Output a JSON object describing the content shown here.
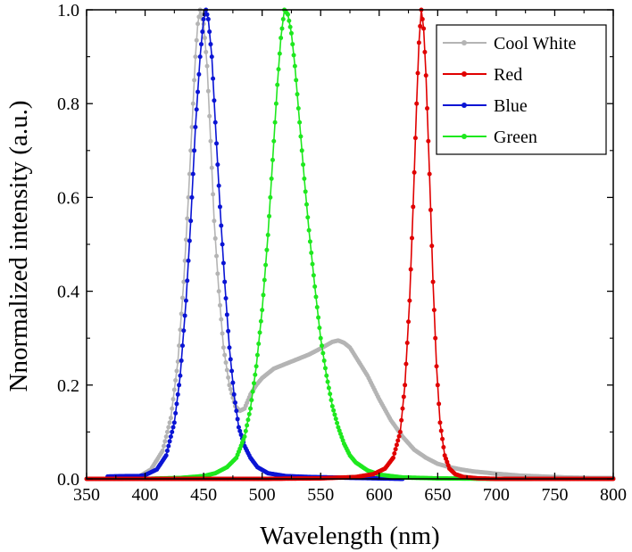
{
  "chart_data": {
    "type": "line",
    "xlabel": "Wavelength (nm)",
    "ylabel": "Nnormalized intensity (a.u.)",
    "xlim": [
      350,
      800
    ],
    "ylim": [
      0,
      1.0
    ],
    "x_ticks": [
      350,
      400,
      450,
      500,
      550,
      600,
      650,
      700,
      750,
      800
    ],
    "x_tick_labels": [
      "350",
      "400",
      "450",
      "500",
      "550",
      "600",
      "650",
      "700",
      "750",
      "800"
    ],
    "y_ticks": [
      0,
      0.2,
      0.4,
      0.6,
      0.8,
      1.0
    ],
    "y_tick_labels": [
      "0.0",
      "0.2",
      "0.4",
      "0.6",
      "0.8",
      "1.0"
    ],
    "legend_position": "top-right",
    "series": [
      {
        "name": "Cool White",
        "color": "#b4b4b4",
        "points": [
          [
            350,
            0
          ],
          [
            380,
            0.0
          ],
          [
            395,
            0.005
          ],
          [
            405,
            0.02
          ],
          [
            415,
            0.06
          ],
          [
            422,
            0.13
          ],
          [
            428,
            0.25
          ],
          [
            433,
            0.42
          ],
          [
            437,
            0.6
          ],
          [
            440,
            0.75
          ],
          [
            443,
            0.9
          ],
          [
            445,
            0.97
          ],
          [
            447,
            1.0
          ],
          [
            450,
            0.97
          ],
          [
            453,
            0.88
          ],
          [
            456,
            0.72
          ],
          [
            459,
            0.55
          ],
          [
            463,
            0.4
          ],
          [
            467,
            0.28
          ],
          [
            472,
            0.2
          ],
          [
            477,
            0.155
          ],
          [
            481,
            0.145
          ],
          [
            485,
            0.15
          ],
          [
            490,
            0.18
          ],
          [
            495,
            0.2
          ],
          [
            500,
            0.215
          ],
          [
            505,
            0.225
          ],
          [
            510,
            0.235
          ],
          [
            520,
            0.245
          ],
          [
            530,
            0.255
          ],
          [
            540,
            0.265
          ],
          [
            550,
            0.278
          ],
          [
            555,
            0.285
          ],
          [
            560,
            0.292
          ],
          [
            565,
            0.295
          ],
          [
            570,
            0.29
          ],
          [
            575,
            0.28
          ],
          [
            580,
            0.26
          ],
          [
            590,
            0.22
          ],
          [
            600,
            0.17
          ],
          [
            610,
            0.125
          ],
          [
            620,
            0.09
          ],
          [
            630,
            0.062
          ],
          [
            640,
            0.045
          ],
          [
            650,
            0.032
          ],
          [
            660,
            0.025
          ],
          [
            670,
            0.02
          ],
          [
            680,
            0.016
          ],
          [
            700,
            0.011
          ],
          [
            720,
            0.007
          ],
          [
            740,
            0.005
          ],
          [
            760,
            0.003
          ],
          [
            780,
            0.002
          ],
          [
            800,
            0.002
          ]
        ]
      },
      {
        "name": "Red",
        "color": "#e00000",
        "points": [
          [
            350,
            0
          ],
          [
            500,
            0
          ],
          [
            550,
            0.001
          ],
          [
            580,
            0.004
          ],
          [
            595,
            0.01
          ],
          [
            605,
            0.022
          ],
          [
            612,
            0.045
          ],
          [
            618,
            0.1
          ],
          [
            622,
            0.2
          ],
          [
            626,
            0.38
          ],
          [
            629,
            0.58
          ],
          [
            632,
            0.8
          ],
          [
            634,
            0.93
          ],
          [
            636,
            1.0
          ],
          [
            638,
            0.96
          ],
          [
            640,
            0.86
          ],
          [
            643,
            0.65
          ],
          [
            646,
            0.42
          ],
          [
            649,
            0.24
          ],
          [
            652,
            0.12
          ],
          [
            656,
            0.05
          ],
          [
            660,
            0.022
          ],
          [
            665,
            0.01
          ],
          [
            672,
            0.004
          ],
          [
            685,
            0.001
          ],
          [
            700,
            0
          ],
          [
            800,
            0
          ]
        ]
      },
      {
        "name": "Blue",
        "color": "#0a14d4",
        "points": [
          [
            368,
            0.005
          ],
          [
            385,
            0.006
          ],
          [
            395,
            0.006
          ],
          [
            400,
            0.008
          ],
          [
            410,
            0.02
          ],
          [
            418,
            0.05
          ],
          [
            425,
            0.12
          ],
          [
            430,
            0.22
          ],
          [
            435,
            0.38
          ],
          [
            439,
            0.55
          ],
          [
            443,
            0.75
          ],
          [
            447,
            0.9
          ],
          [
            450,
            0.98
          ],
          [
            452,
            1.0
          ],
          [
            454,
            0.98
          ],
          [
            457,
            0.9
          ],
          [
            460,
            0.76
          ],
          [
            464,
            0.58
          ],
          [
            468,
            0.42
          ],
          [
            472,
            0.28
          ],
          [
            476,
            0.18
          ],
          [
            480,
            0.11
          ],
          [
            485,
            0.07
          ],
          [
            490,
            0.045
          ],
          [
            496,
            0.025
          ],
          [
            505,
            0.012
          ],
          [
            520,
            0.006
          ],
          [
            540,
            0.004
          ],
          [
            580,
            0.002
          ],
          [
            600,
            0.001
          ],
          [
            620,
            0
          ]
        ]
      },
      {
        "name": "Green",
        "color": "#1ee81e",
        "points": [
          [
            400,
            0
          ],
          [
            430,
            0.002
          ],
          [
            450,
            0.006
          ],
          [
            460,
            0.012
          ],
          [
            470,
            0.025
          ],
          [
            478,
            0.045
          ],
          [
            485,
            0.09
          ],
          [
            490,
            0.15
          ],
          [
            495,
            0.24
          ],
          [
            500,
            0.36
          ],
          [
            505,
            0.52
          ],
          [
            509,
            0.68
          ],
          [
            513,
            0.84
          ],
          [
            516,
            0.94
          ],
          [
            519,
            1.0
          ],
          [
            522,
            0.99
          ],
          [
            525,
            0.95
          ],
          [
            528,
            0.88
          ],
          [
            532,
            0.76
          ],
          [
            536,
            0.64
          ],
          [
            540,
            0.53
          ],
          [
            545,
            0.41
          ],
          [
            550,
            0.3
          ],
          [
            555,
            0.22
          ],
          [
            560,
            0.155
          ],
          [
            565,
            0.11
          ],
          [
            570,
            0.075
          ],
          [
            575,
            0.05
          ],
          [
            580,
            0.035
          ],
          [
            590,
            0.018
          ],
          [
            600,
            0.009
          ],
          [
            620,
            0.003
          ],
          [
            650,
            0.001
          ],
          [
            700,
            0
          ],
          [
            730,
            0
          ]
        ]
      }
    ]
  }
}
